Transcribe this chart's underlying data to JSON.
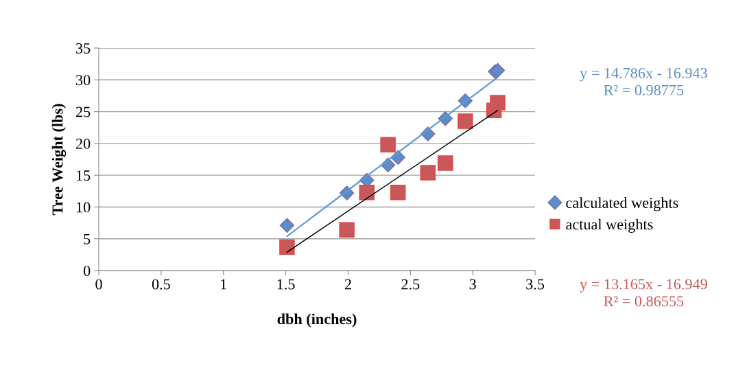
{
  "chart_data": {
    "type": "scatter",
    "xlabel": "dbh (inches)",
    "ylabel": "Tree Weight (lbs)",
    "xlim": [
      0,
      3.5
    ],
    "xticks": [
      0,
      0.5,
      1,
      1.5,
      2,
      2.5,
      3,
      3.5
    ],
    "ylim": [
      0,
      35
    ],
    "yticks": [
      0,
      5,
      10,
      15,
      20,
      25,
      30,
      35
    ],
    "grid": "y",
    "legend": "right",
    "series": [
      {
        "name": "calculated weights",
        "marker": "diamond",
        "color": "#5b8ec8",
        "x": [
          1.51,
          1.99,
          2.15,
          2.32,
          2.4,
          2.64,
          2.78,
          2.94,
          3.18,
          3.2
        ],
        "values": [
          7.1,
          12.2,
          14.2,
          16.6,
          17.8,
          21.5,
          23.9,
          26.7,
          31.3,
          31.5
        ]
      },
      {
        "name": "actual weights",
        "marker": "square",
        "color": "#c9585a",
        "x": [
          1.51,
          1.99,
          2.15,
          2.32,
          2.4,
          2.64,
          2.78,
          2.94,
          3.17,
          3.2
        ],
        "values": [
          3.7,
          6.4,
          12.3,
          19.8,
          12.3,
          15.4,
          16.9,
          23.5,
          25.2,
          26.4
        ]
      },
      {
        "type": "line",
        "color": "#5b9bd5",
        "x": [
          1.51,
          3.2
        ],
        "values": [
          5.4,
          30.4
        ]
      },
      {
        "type": "line",
        "color": "#000000",
        "x": [
          1.51,
          3.2
        ],
        "values": [
          2.9,
          25.2
        ]
      }
    ],
    "annotations": [
      "y = 14.786x - 16.943\nR² = 0.98775",
      "y = 13.165x - 16.949\nR² = 0.86555"
    ]
  }
}
